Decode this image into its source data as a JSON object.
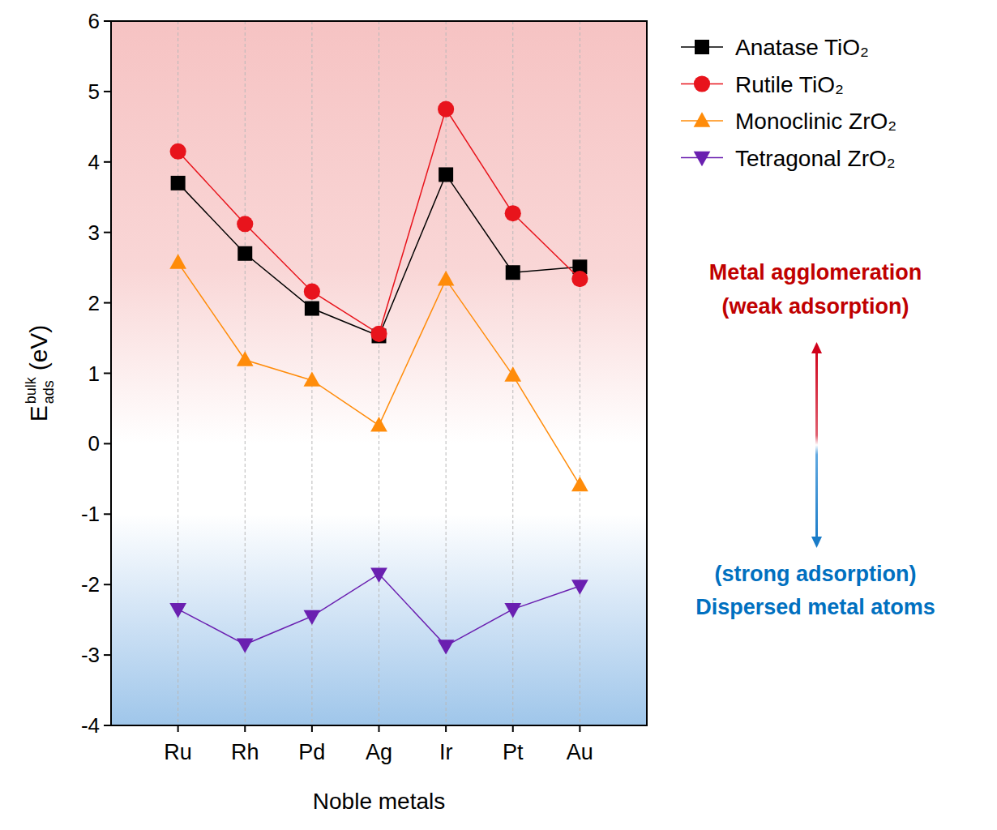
{
  "chart_data": {
    "type": "line",
    "x_label": "Noble metals",
    "y_label": {
      "text": "E",
      "sub": "ads",
      "sup": "bulk",
      "unit": "(eV)"
    },
    "categories": [
      "Ru",
      "Rh",
      "Pd",
      "Ag",
      "Ir",
      "Pt",
      "Au"
    ],
    "series": [
      {
        "name": "Anatase TiO₂",
        "color": "#000000",
        "marker": "square",
        "line_style": "solid",
        "values": [
          3.7,
          2.7,
          1.92,
          1.53,
          3.82,
          2.43,
          2.51
        ]
      },
      {
        "name": "Rutile TiO₂",
        "color": "#e8141c",
        "marker": "circle",
        "line_style": "solid",
        "values": [
          4.15,
          3.12,
          2.16,
          1.56,
          4.75,
          3.27,
          2.34
        ]
      },
      {
        "name": "Monoclinic ZrO₂",
        "color": "#ff8c0a",
        "marker": "triangle-up",
        "line_style": "solid",
        "values": [
          2.57,
          1.19,
          0.9,
          0.26,
          2.33,
          0.97,
          -0.59
        ]
      },
      {
        "name": "Tetragonal ZrO₂",
        "color": "#6a1fb0",
        "marker": "triangle-down",
        "line_style": "solid",
        "values": [
          -2.35,
          -2.85,
          -2.45,
          -1.85,
          -2.87,
          -2.35,
          -2.02
        ]
      }
    ],
    "ylim": [
      -4,
      6
    ],
    "yticks": [
      -4,
      -3,
      -2,
      -1,
      0,
      1,
      2,
      3,
      4,
      5,
      6
    ],
    "grid": true,
    "legend": "upper right",
    "annotations": [
      {
        "text": "Metal agglomeration",
        "color": "#c00000"
      },
      {
        "text": "(weak adsorption)",
        "color": "#c00000"
      },
      {
        "text": "(strong adsorption)",
        "color": "#0070c0"
      },
      {
        "text": "Dispersed metal atoms",
        "color": "#0070c0"
      }
    ]
  }
}
